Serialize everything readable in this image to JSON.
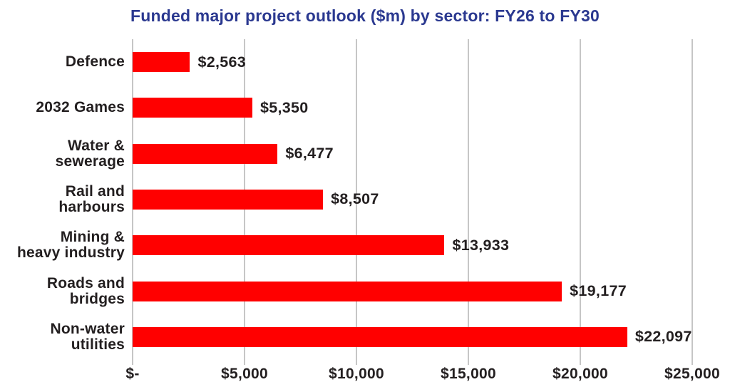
{
  "chart_data": {
    "type": "bar",
    "orientation": "horizontal",
    "title": "Funded major project outlook ($m) by sector: FY26 to FY30",
    "categories": [
      "Defence",
      "2032 Games",
      "Water &\nsewerage",
      "Rail and\nharbours",
      "Mining &\nheavy industry",
      "Roads and\nbridges",
      "Non-water\nutilities"
    ],
    "values": [
      2563,
      5350,
      6477,
      8507,
      13933,
      19177,
      22097
    ],
    "value_labels": [
      "$2,563",
      "$5,350",
      "$6,477",
      "$8,507",
      "$13,933",
      "$19,177",
      "$22,097"
    ],
    "x_ticks": [
      "$-",
      "$5,000",
      "$10,000",
      "$15,000",
      "$20,000",
      "$25,000"
    ],
    "x_tick_values": [
      0,
      5000,
      10000,
      15000,
      20000,
      25000
    ],
    "xlim": [
      0,
      25000
    ],
    "grid": "vertical",
    "legend": "none",
    "colors": {
      "bar": "#ff0000",
      "gridline": "#c6c6c6",
      "title": "#2b3990",
      "text": "#231f20",
      "background": "#ffffff"
    }
  }
}
